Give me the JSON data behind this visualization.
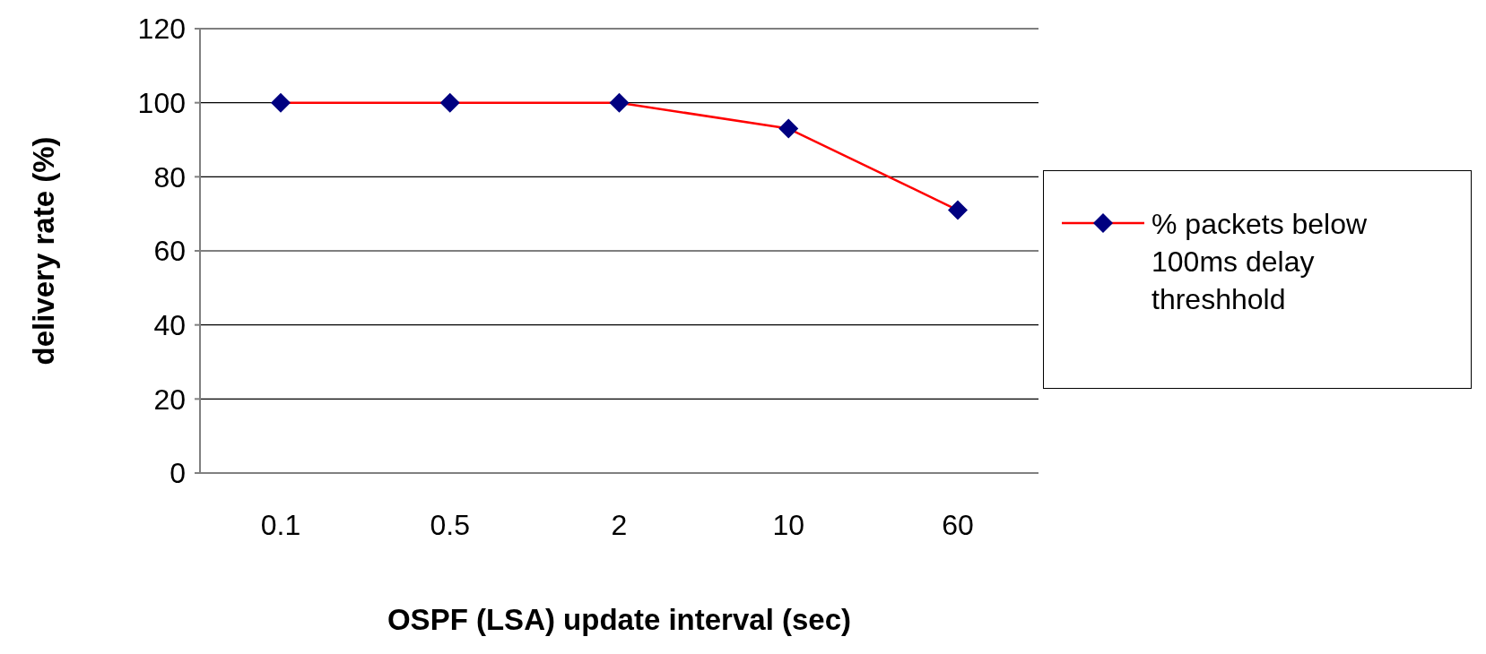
{
  "chart_data": {
    "type": "line",
    "xlabel": "OSPF (LSA) update interval (sec)",
    "ylabel": "delivery rate (%)",
    "categories": [
      "0.1",
      "0.5",
      "2",
      "10",
      "60"
    ],
    "series": [
      {
        "name": "% packets below 100ms delay threshhold",
        "color": "#ff0000",
        "colors": [
          "#000080",
          "#000080",
          "#000080",
          "#000080",
          "#000080"
        ],
        "values": [
          100,
          100,
          100,
          93,
          71
        ]
      }
    ],
    "ylim": [
      0,
      120
    ],
    "yticks": [
      0,
      20,
      40,
      60,
      80,
      100,
      120
    ],
    "grid": "y",
    "legend": "right",
    "marker": "diamond",
    "line_style": "solid"
  }
}
